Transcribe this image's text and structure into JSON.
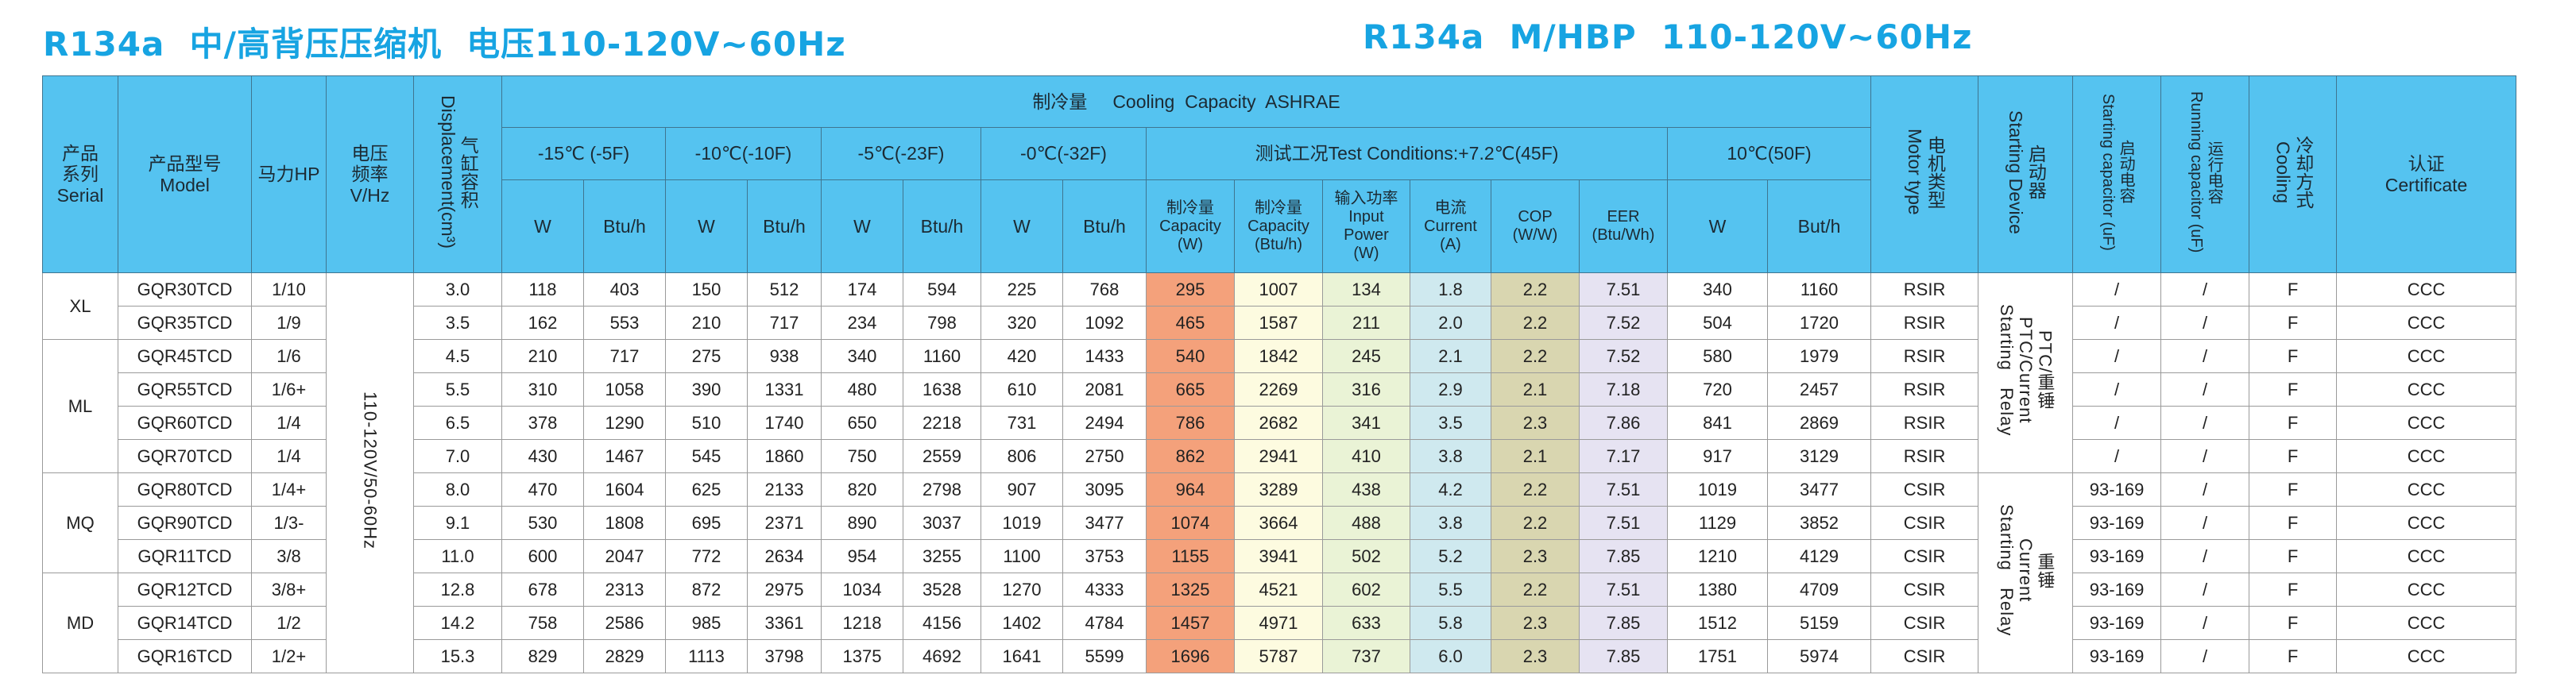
{
  "titles": {
    "left": "R134a  中/高背压压缩机  电压110-120V~60Hz",
    "right": "R134a  M/HBP  110-120V~60Hz"
  },
  "colors": {
    "title": "#17a4e2",
    "header_bg": "#55c3f0",
    "capacity_w": "#f4a17b",
    "capacity_btu": "#fdfbe0",
    "input_power": "#eaf3d6",
    "current": "#cfe9ef",
    "cop": "#d9d6b0",
    "eer": "#e6e3f2"
  },
  "header": {
    "serial": "产品\n系列\nSerial",
    "model": "产品型号\nModel",
    "hp": "马力HP",
    "voltage": "电压\n频率\nV/Hz",
    "displacement_cn": "气缸容积",
    "displacement_en": "Displacement(cm³)",
    "cooling_capacity": "制冷量     Cooling  Capacity  ASHRAE",
    "temp_groups": [
      "-15℃ (-5F)",
      "-10℃(-10F)",
      "-5℃(-23F)",
      "-0℃(-32F)"
    ],
    "test_conditions": "测试工况Test Conditions:+7.2℃(45F)",
    "temp_10c": "10℃(50F)",
    "unit_w": "W",
    "unit_btu": "Btu/h",
    "unit_but": "But/h",
    "test_cols": [
      "制冷量\nCapacity\n(W)",
      "制冷量\nCapacity\n(Btu/h)",
      "输入功率\nInput\nPower\n(W)",
      "电流\nCurrent\n(A)",
      "COP\n(W/W)",
      "EER\n(Btu/Wh)"
    ],
    "motor_cn": "电机类型",
    "motor_en": "Motor type",
    "starter_cn": "启动器",
    "starter_en": "Starting Device",
    "startcap_cn": "启动电容",
    "startcap_en": "Starting capacitor (uF)",
    "runcap_cn": "运行电容",
    "runcap_en": "Running capacitor (uF)",
    "cooling_cn": "冷却方式",
    "cooling_en": "Cooling",
    "cert": "认证\nCertificate"
  },
  "voltage_value": "110-120V/50-60Hz",
  "serial_groups": [
    {
      "label": "XL",
      "rows": 2
    },
    {
      "label": "ML",
      "rows": 4
    },
    {
      "label": "MQ",
      "rows": 3
    },
    {
      "label": "MD",
      "rows": 3
    }
  ],
  "starter_groups": [
    {
      "label": "PTC/重锤\nPTC/Current\nStarting   Relay",
      "rows": 6
    },
    {
      "label": "重锤\nCurrent\nStarting   Relay",
      "rows": 6
    }
  ],
  "rows": [
    [
      "GQR30TCD",
      "1/10",
      "3.0",
      "118",
      "403",
      "150",
      "512",
      "174",
      "594",
      "225",
      "768",
      "295",
      "1007",
      "134",
      "1.8",
      "2.2",
      "7.51",
      "340",
      "1160",
      "RSIR",
      "/",
      "/",
      "F",
      "CCC"
    ],
    [
      "GQR35TCD",
      "1/9",
      "3.5",
      "162",
      "553",
      "210",
      "717",
      "234",
      "798",
      "320",
      "1092",
      "465",
      "1587",
      "211",
      "2.0",
      "2.2",
      "7.52",
      "504",
      "1720",
      "RSIR",
      "/",
      "/",
      "F",
      "CCC"
    ],
    [
      "GQR45TCD",
      "1/6",
      "4.5",
      "210",
      "717",
      "275",
      "938",
      "340",
      "1160",
      "420",
      "1433",
      "540",
      "1842",
      "245",
      "2.1",
      "2.2",
      "7.52",
      "580",
      "1979",
      "RSIR",
      "/",
      "/",
      "F",
      "CCC"
    ],
    [
      "GQR55TCD",
      "1/6+",
      "5.5",
      "310",
      "1058",
      "390",
      "1331",
      "480",
      "1638",
      "610",
      "2081",
      "665",
      "2269",
      "316",
      "2.9",
      "2.1",
      "7.18",
      "720",
      "2457",
      "RSIR",
      "/",
      "/",
      "F",
      "CCC"
    ],
    [
      "GQR60TCD",
      "1/4",
      "6.5",
      "378",
      "1290",
      "510",
      "1740",
      "650",
      "2218",
      "731",
      "2494",
      "786",
      "2682",
      "341",
      "3.5",
      "2.3",
      "7.86",
      "841",
      "2869",
      "RSIR",
      "/",
      "/",
      "F",
      "CCC"
    ],
    [
      "GQR70TCD",
      "1/4",
      "7.0",
      "430",
      "1467",
      "545",
      "1860",
      "750",
      "2559",
      "806",
      "2750",
      "862",
      "2941",
      "410",
      "3.8",
      "2.1",
      "7.17",
      "917",
      "3129",
      "RSIR",
      "/",
      "/",
      "F",
      "CCC"
    ],
    [
      "GQR80TCD",
      "1/4+",
      "8.0",
      "470",
      "1604",
      "625",
      "2133",
      "820",
      "2798",
      "907",
      "3095",
      "964",
      "3289",
      "438",
      "4.2",
      "2.2",
      "7.51",
      "1019",
      "3477",
      "CSIR",
      "93-169",
      "/",
      "F",
      "CCC"
    ],
    [
      "GQR90TCD",
      "1/3-",
      "9.1",
      "530",
      "1808",
      "695",
      "2371",
      "890",
      "3037",
      "1019",
      "3477",
      "1074",
      "3664",
      "488",
      "3.8",
      "2.2",
      "7.51",
      "1129",
      "3852",
      "CSIR",
      "93-169",
      "/",
      "F",
      "CCC"
    ],
    [
      "GQR11TCD",
      "3/8",
      "11.0",
      "600",
      "2047",
      "772",
      "2634",
      "954",
      "3255",
      "1100",
      "3753",
      "1155",
      "3941",
      "502",
      "5.2",
      "2.3",
      "7.85",
      "1210",
      "4129",
      "CSIR",
      "93-169",
      "/",
      "F",
      "CCC"
    ],
    [
      "GQR12TCD",
      "3/8+",
      "12.8",
      "678",
      "2313",
      "872",
      "2975",
      "1034",
      "3528",
      "1270",
      "4333",
      "1325",
      "4521",
      "602",
      "5.5",
      "2.2",
      "7.51",
      "1380",
      "4709",
      "CSIR",
      "93-169",
      "/",
      "F",
      "CCC"
    ],
    [
      "GQR14TCD",
      "1/2",
      "14.2",
      "758",
      "2586",
      "985",
      "3361",
      "1218",
      "4156",
      "1402",
      "4784",
      "1457",
      "4971",
      "633",
      "5.8",
      "2.3",
      "7.85",
      "1512",
      "5159",
      "CSIR",
      "93-169",
      "/",
      "F",
      "CCC"
    ],
    [
      "GQR16TCD",
      "1/2+",
      "15.3",
      "829",
      "2829",
      "1113",
      "3798",
      "1375",
      "4692",
      "1641",
      "5599",
      "1696",
      "5787",
      "737",
      "6.0",
      "2.3",
      "7.85",
      "1751",
      "5974",
      "CSIR",
      "93-169",
      "/",
      "F",
      "CCC"
    ]
  ]
}
